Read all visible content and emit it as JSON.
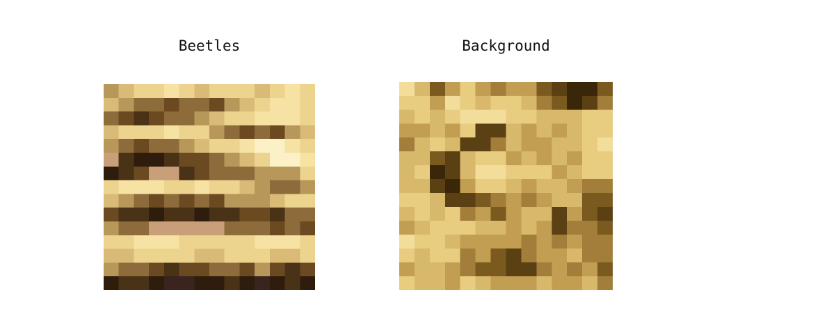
{
  "panels": [
    {
      "title": "Beetles",
      "palette": {
        "A": "#f6e2a2",
        "B": "#ecd38e",
        "C": "#d9bb77",
        "D": "#b8975a",
        "E": "#8e6b3a",
        "F": "#6b4a22",
        "G": "#4a3216",
        "H": "#2e1c0c",
        "I": "#fbf0c6",
        "J": "#c99f7a",
        "K": "#3a2420"
      },
      "rows": [
        "DCBBABCBBBCBAB",
        "CDEEFEEFDCBAAB",
        "EFGFEEDCBBAAAB",
        "CBBBABBDEFEFDC",
        "DEFEEDCBBAIIAB",
        "JGHHGFFEDCBIIA",
        "HGFJJGFEEEDDDB",
        "BAAABBABBCDEED",
        "CDEFEFEFDDDCBB",
        "FGGHGGHGGFFGEE",
        "DEEJJJJJEEEFEF",
        "BBAAABBBBBAAAB",
        "CCBBBBCCBBBCCB",
        "DEEFGFFEEFDFGF",
        "HGGHKKHHGHKHGH"
      ]
    },
    {
      "title": "Background",
      "palette": {
        "A": "#f3dd9a",
        "B": "#e8cc80",
        "C": "#d8b86a",
        "D": "#c29e52",
        "E": "#a37e3a",
        "F": "#7a5a1e",
        "G": "#5a4012",
        "H": "#3a2608",
        "I": "#f8e8b0"
      },
      "rows": [
        "ACFDBDEDDFGHHF",
        "BBDABCBBCEFHGE",
        "CBCBAAABBCCCBB",
        "DDCDBGGCDCDCBB",
        "ECBCGGECDDCCBA",
        "CCFGCBBDCDCDBB",
        "CBHGCAABBBDCBB",
        "CCGHDBBCDCCDEE",
        "BBCGGFEDEDCCFF",
        "CBCBEDFDCCGDFG",
        "DCBBBCCDCDGEEF",
        "ABBCDDDDEDEDEE",
        "BCBBEDFGEDDCEE",
        "DCCDEFFGGEDEDF",
        "BCCDBCDDDCDDCE"
      ]
    }
  ]
}
